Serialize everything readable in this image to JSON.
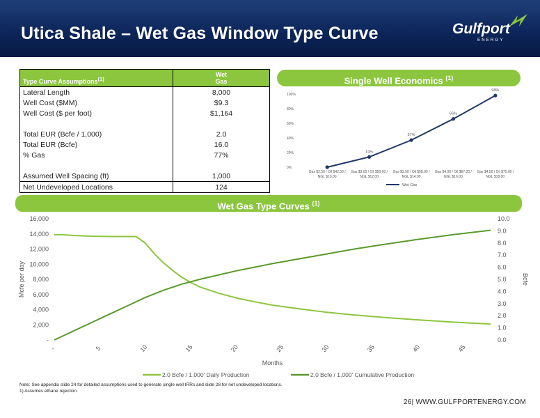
{
  "header": {
    "title": "Utica Shale – Wet Gas Window Type Curve"
  },
  "logo": {
    "word": "Gulfport",
    "sub": "ENERGY"
  },
  "assumptions": {
    "header_label": "Type Curve Assumptions",
    "header_sup": "(1)",
    "col_header_1": "Wet",
    "col_header_2": "Gas",
    "rows": [
      {
        "label": "Lateral Length",
        "value": "8,000"
      },
      {
        "label": "Well Cost ($MM)",
        "value": "$9.3"
      },
      {
        "label": "Well Cost ($ per foot)",
        "value": "$1,164"
      },
      {
        "label": "",
        "value": ""
      },
      {
        "label": "Total EUR (Bcfe / 1,000)",
        "value": "2.0"
      },
      {
        "label": "Total EUR (Bcfe)",
        "value": "16.0"
      },
      {
        "label": "% Gas",
        "value": "77%"
      },
      {
        "label": "",
        "value": ""
      },
      {
        "label": "Assumed Well Spacing (ft)",
        "value": "1,000"
      },
      {
        "label": "Net Undeveloped Locations",
        "value": "124"
      }
    ]
  },
  "econ": {
    "title": "Single Well Economics",
    "sup": "(1)"
  },
  "wet": {
    "title": "Wet Gas Type Curves",
    "sup": "(1)"
  },
  "chart_data": [
    {
      "type": "line",
      "categories": [
        [
          "Gas $2.50 / Oil $42.50 /",
          "NGL $10.00"
        ],
        [
          "Gas $3.00 / Oil $50.00 /",
          "NGL $12.00"
        ],
        [
          "Gas $3.50 / Oil $58.00 /",
          "NGL $14.00"
        ],
        [
          "Gas $4.00 / Oil $67.00 /",
          "NGL $16.00"
        ],
        [
          "Gas $4.50 / Oil $75.00 /",
          "NGL $18.00"
        ]
      ],
      "series": [
        {
          "name": "Wet Gas",
          "values": [
            0,
            14,
            37,
            66,
            98
          ],
          "labels": [
            "",
            "14%",
            "37%",
            "66%",
            "98%"
          ],
          "color": "#1f3864"
        }
      ],
      "yticks": [
        "0%",
        "20%",
        "40%",
        "60%",
        "80%",
        "100%"
      ],
      "ylim": [
        0,
        100
      ],
      "legend": "bottom"
    },
    {
      "type": "line",
      "xlabel": "Months",
      "ylabel": "Mcfe per day",
      "y2label": "Bcfe",
      "xticks": [
        "-",
        "5",
        "10",
        "15",
        "20",
        "25",
        "30",
        "35",
        "40",
        "45"
      ],
      "xlim": [
        0,
        48
      ],
      "yticks": [
        "-",
        "2,000",
        "4,000",
        "6,000",
        "8,000",
        "10,000",
        "12,000",
        "14,000",
        "16,000"
      ],
      "ylim": [
        0,
        16000
      ],
      "y2ticks": [
        "0.0",
        "1.0",
        "2.0",
        "3.0",
        "4.0",
        "5.0",
        "6.0",
        "7.0",
        "8.0",
        "9.0",
        "10.0"
      ],
      "y2lim": [
        0,
        10
      ],
      "series": [
        {
          "name": "2.0 Bcfe / 1,000' Daily Production",
          "axis": "left",
          "color": "#8cc63f",
          "x": [
            0,
            1,
            2,
            3,
            4,
            5,
            6,
            7,
            8,
            9,
            10,
            11,
            12,
            13,
            14,
            15,
            16,
            18,
            20,
            22,
            24,
            27,
            30,
            33,
            36,
            40,
            44,
            48
          ],
          "y": [
            13900,
            13900,
            13800,
            13750,
            13700,
            13680,
            13650,
            13650,
            13650,
            13650,
            12800,
            11400,
            10200,
            9200,
            8300,
            7600,
            7000,
            6200,
            5550,
            5050,
            4600,
            4100,
            3650,
            3300,
            3000,
            2650,
            2350,
            2100
          ]
        },
        {
          "name": "2.0 Bcfe / 1,000' Cumulative Production",
          "axis": "right",
          "color": "#5a9a2c",
          "x": [
            0,
            2,
            4,
            6,
            8,
            10,
            12,
            14,
            16,
            18,
            20,
            22,
            24,
            27,
            30,
            33,
            36,
            40,
            44,
            48
          ],
          "y": [
            0,
            0.7,
            1.4,
            2.1,
            2.8,
            3.5,
            4.1,
            4.6,
            5.0,
            5.35,
            5.7,
            6.0,
            6.3,
            6.7,
            7.1,
            7.5,
            7.85,
            8.3,
            8.7,
            9.05
          ]
        }
      ],
      "legend": "bottom"
    }
  ],
  "note": {
    "line1": "Note: See appendix slide 24 for detailed assumptions used to generate single well IRRs and slide 28 for net undeveloped locations.",
    "line2": "1)      Assumes ethane rejection."
  },
  "footer": {
    "page": "26",
    "site": "| WWW.GULFPORTENERGY.COM"
  }
}
